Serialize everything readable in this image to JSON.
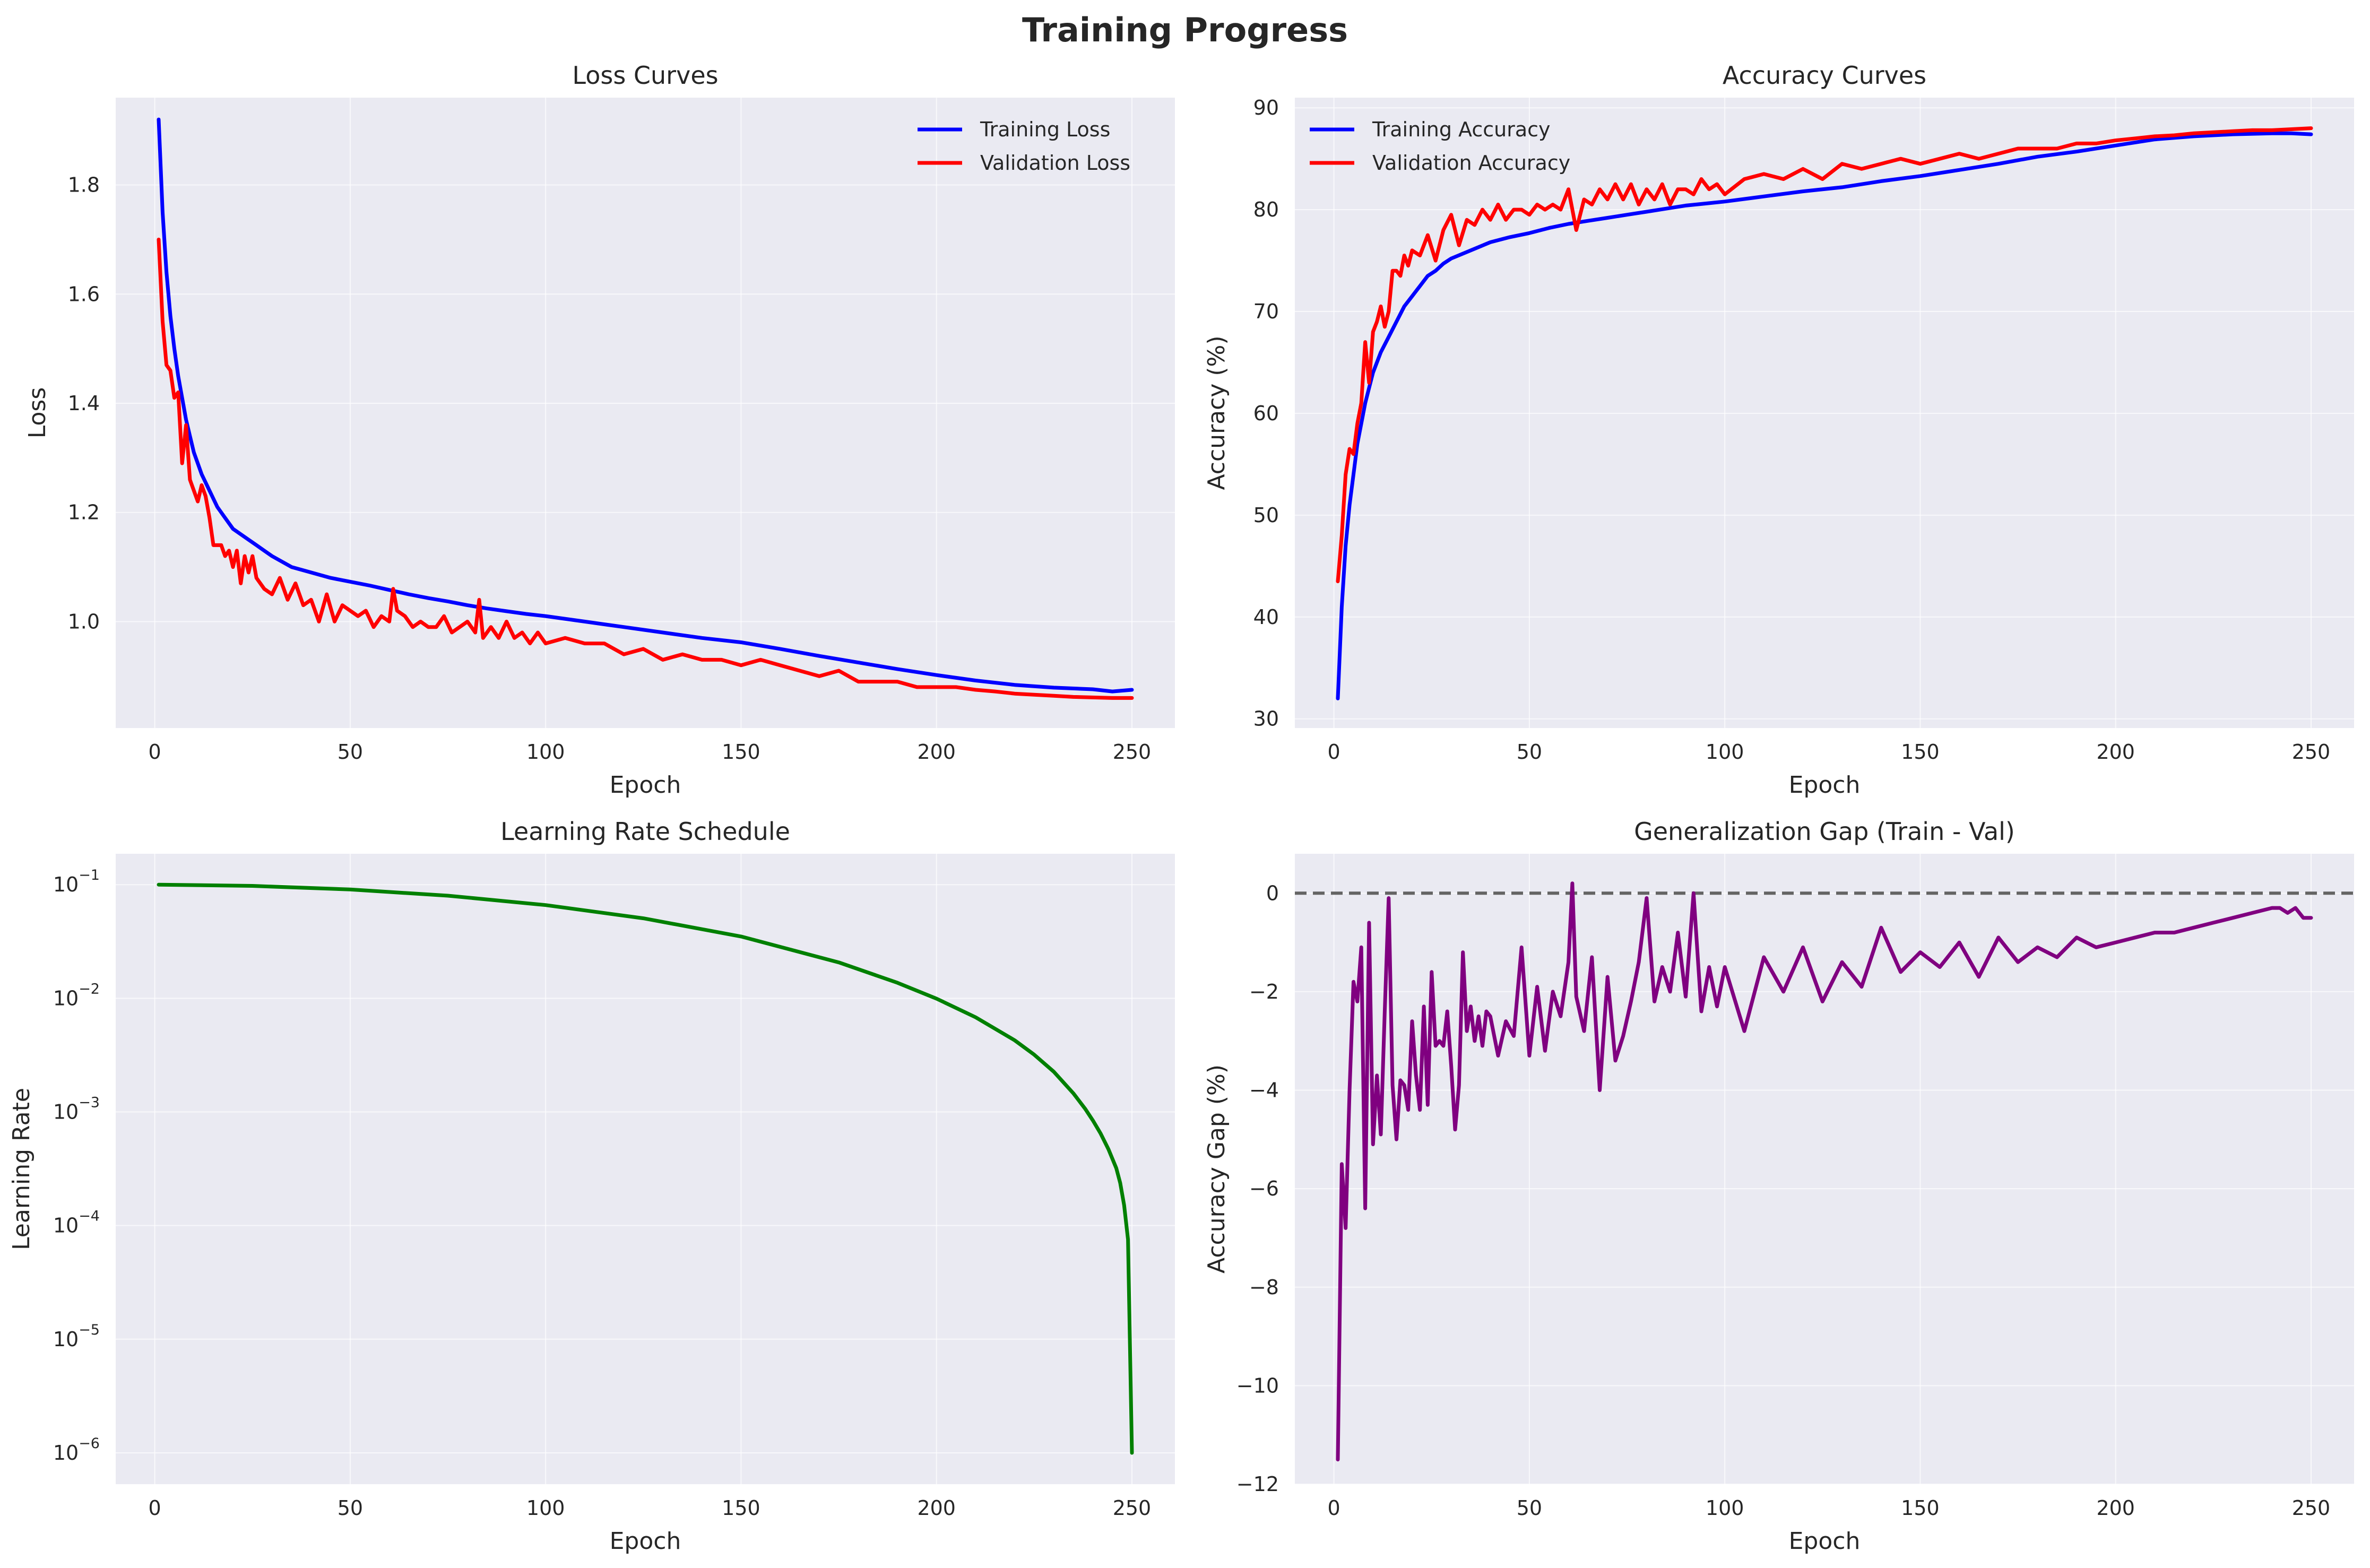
{
  "figure": {
    "title": "Training Progress"
  },
  "chart_data": [
    {
      "id": "loss",
      "type": "line",
      "title": "Loss Curves",
      "xlabel": "Epoch",
      "ylabel": "Loss",
      "xlim": [
        -10,
        261
      ],
      "ylim": [
        0.805,
        1.96
      ],
      "xticks": [
        0,
        50,
        100,
        150,
        200,
        250
      ],
      "yticks": [
        1.0,
        1.2,
        1.4,
        1.6,
        1.8
      ],
      "ytick_labels": [
        "1.0",
        "1.2",
        "1.4",
        "1.6",
        "1.8"
      ],
      "legend": "top-right",
      "grid": true,
      "series": [
        {
          "name": "Training Loss",
          "color": "#0000ff",
          "x": [
            1,
            2,
            3,
            4,
            5,
            6,
            7,
            8,
            9,
            10,
            12,
            14,
            16,
            18,
            20,
            22,
            24,
            26,
            28,
            30,
            35,
            40,
            45,
            50,
            55,
            60,
            65,
            70,
            75,
            80,
            85,
            90,
            95,
            100,
            110,
            120,
            130,
            140,
            150,
            160,
            170,
            180,
            190,
            200,
            210,
            220,
            230,
            240,
            245,
            250
          ],
          "y": [
            1.92,
            1.75,
            1.64,
            1.56,
            1.5,
            1.45,
            1.41,
            1.37,
            1.34,
            1.31,
            1.27,
            1.24,
            1.21,
            1.19,
            1.17,
            1.16,
            1.15,
            1.14,
            1.13,
            1.12,
            1.1,
            1.09,
            1.08,
            1.073,
            1.066,
            1.058,
            1.05,
            1.043,
            1.037,
            1.03,
            1.024,
            1.019,
            1.014,
            1.01,
            1.0,
            0.99,
            0.98,
            0.97,
            0.962,
            0.95,
            0.937,
            0.925,
            0.913,
            0.902,
            0.892,
            0.884,
            0.879,
            0.876,
            0.872,
            0.875
          ]
        },
        {
          "name": "Validation Loss",
          "color": "#ff0000",
          "x": [
            1,
            2,
            3,
            4,
            5,
            6,
            7,
            8,
            9,
            10,
            11,
            12,
            13,
            14,
            15,
            16,
            17,
            18,
            19,
            20,
            21,
            22,
            23,
            24,
            25,
            26,
            28,
            30,
            32,
            34,
            36,
            38,
            40,
            42,
            44,
            46,
            48,
            50,
            52,
            54,
            56,
            58,
            60,
            61,
            62,
            64,
            66,
            68,
            70,
            72,
            74,
            76,
            78,
            80,
            82,
            83,
            84,
            86,
            88,
            90,
            92,
            94,
            96,
            98,
            100,
            105,
            110,
            115,
            120,
            125,
            130,
            135,
            140,
            145,
            150,
            155,
            160,
            165,
            170,
            175,
            180,
            185,
            190,
            195,
            200,
            205,
            210,
            215,
            220,
            225,
            230,
            235,
            240,
            245,
            250
          ],
          "y": [
            1.7,
            1.55,
            1.47,
            1.46,
            1.41,
            1.42,
            1.29,
            1.36,
            1.26,
            1.24,
            1.22,
            1.25,
            1.23,
            1.19,
            1.14,
            1.14,
            1.14,
            1.12,
            1.13,
            1.1,
            1.13,
            1.07,
            1.12,
            1.09,
            1.12,
            1.08,
            1.06,
            1.05,
            1.08,
            1.04,
            1.07,
            1.03,
            1.04,
            1.0,
            1.05,
            1.0,
            1.03,
            1.02,
            1.01,
            1.02,
            0.99,
            1.01,
            1.0,
            1.06,
            1.02,
            1.01,
            0.99,
            1.0,
            0.99,
            0.99,
            1.01,
            0.98,
            0.99,
            1.0,
            0.98,
            1.04,
            0.97,
            0.99,
            0.97,
            1.0,
            0.97,
            0.98,
            0.96,
            0.98,
            0.96,
            0.97,
            0.96,
            0.96,
            0.94,
            0.95,
            0.93,
            0.94,
            0.93,
            0.93,
            0.92,
            0.93,
            0.92,
            0.91,
            0.9,
            0.91,
            0.89,
            0.89,
            0.89,
            0.88,
            0.88,
            0.88,
            0.875,
            0.872,
            0.868,
            0.866,
            0.864,
            0.862,
            0.861,
            0.86,
            0.86
          ]
        }
      ]
    },
    {
      "id": "accuracy",
      "type": "line",
      "title": "Accuracy Curves",
      "xlabel": "Epoch",
      "ylabel": "Accuracy (%)",
      "xlim": [
        -10,
        261
      ],
      "ylim": [
        29.1,
        91.0
      ],
      "xticks": [
        0,
        50,
        100,
        150,
        200,
        250
      ],
      "yticks": [
        30,
        40,
        50,
        60,
        70,
        80,
        90
      ],
      "ytick_labels": [
        "30",
        "40",
        "50",
        "60",
        "70",
        "80",
        "90"
      ],
      "legend": "top-left",
      "grid": true,
      "series": [
        {
          "name": "Training Accuracy",
          "color": "#0000ff",
          "x": [
            1,
            2,
            3,
            4,
            5,
            6,
            7,
            8,
            9,
            10,
            12,
            14,
            16,
            18,
            20,
            22,
            24,
            26,
            28,
            30,
            35,
            40,
            45,
            50,
            55,
            60,
            65,
            70,
            75,
            80,
            85,
            90,
            95,
            100,
            110,
            120,
            130,
            140,
            150,
            160,
            170,
            180,
            190,
            200,
            210,
            220,
            230,
            240,
            245,
            250
          ],
          "y": [
            32,
            41,
            47,
            51,
            54,
            57,
            59,
            61,
            62.5,
            64,
            66,
            67.5,
            69,
            70.5,
            71.5,
            72.5,
            73.5,
            74,
            74.7,
            75.2,
            76,
            76.8,
            77.3,
            77.7,
            78.2,
            78.6,
            78.9,
            79.2,
            79.5,
            79.8,
            80.1,
            80.4,
            80.6,
            80.8,
            81.3,
            81.8,
            82.2,
            82.8,
            83.3,
            83.9,
            84.5,
            85.2,
            85.7,
            86.3,
            86.9,
            87.2,
            87.4,
            87.5,
            87.5,
            87.4
          ]
        },
        {
          "name": "Validation Accuracy",
          "color": "#ff0000",
          "x": [
            1,
            2,
            3,
            4,
            5,
            6,
            7,
            8,
            9,
            10,
            11,
            12,
            13,
            14,
            15,
            16,
            17,
            18,
            19,
            20,
            22,
            24,
            26,
            28,
            30,
            32,
            34,
            36,
            38,
            40,
            42,
            44,
            46,
            48,
            50,
            52,
            54,
            56,
            58,
            60,
            62,
            64,
            66,
            68,
            70,
            72,
            74,
            76,
            78,
            80,
            82,
            84,
            86,
            88,
            90,
            92,
            94,
            96,
            98,
            100,
            105,
            110,
            115,
            120,
            125,
            130,
            135,
            140,
            145,
            150,
            155,
            160,
            165,
            170,
            175,
            180,
            185,
            190,
            195,
            200,
            205,
            210,
            215,
            220,
            225,
            230,
            235,
            240,
            245,
            250
          ],
          "y": [
            43.5,
            48,
            54,
            56.5,
            56,
            59,
            61,
            67,
            63,
            68,
            69,
            70.5,
            68.5,
            70,
            74,
            74,
            73.5,
            75.5,
            74.5,
            76,
            75.5,
            77.5,
            75,
            78,
            79.5,
            76.5,
            79,
            78.5,
            80,
            79,
            80.5,
            79,
            80,
            80,
            79.5,
            80.5,
            80,
            80.5,
            80,
            82,
            78,
            81,
            80.5,
            82,
            81,
            82.5,
            81,
            82.5,
            80.5,
            82,
            81,
            82.5,
            80.5,
            82,
            82,
            81.5,
            83,
            82,
            82.5,
            81.5,
            83,
            83.5,
            83,
            84,
            83,
            84.5,
            84,
            84.5,
            85,
            84.5,
            85,
            85.5,
            85,
            85.5,
            86,
            86,
            86,
            86.5,
            86.5,
            86.8,
            87,
            87.2,
            87.3,
            87.5,
            87.6,
            87.7,
            87.8,
            87.8,
            87.9,
            88
          ]
        }
      ]
    },
    {
      "id": "lr",
      "type": "line",
      "title": "Learning Rate Schedule",
      "xlabel": "Epoch",
      "ylabel": "Learning Rate",
      "yscale": "log",
      "xlim": [
        -10,
        261
      ],
      "ylim": [
        5.3e-07,
        0.187
      ],
      "xticks": [
        0,
        50,
        100,
        150,
        200,
        250
      ],
      "yticks": [
        1e-06,
        1e-05,
        0.0001,
        0.001,
        0.01,
        0.1
      ],
      "ytick_base": "10",
      "ytick_exponents": [
        "−6",
        "−5",
        "−4",
        "−3",
        "−2",
        "−1"
      ],
      "legend": "none",
      "grid": true,
      "series": [
        {
          "color": "#008000",
          "x": [
            1,
            25,
            50,
            75,
            100,
            125,
            150,
            175,
            190,
            200,
            210,
            220,
            225,
            230,
            235,
            238,
            240,
            242,
            244,
            246,
            247,
            248,
            249,
            250
          ],
          "y": [
            0.1,
            0.0976,
            0.0907,
            0.08,
            0.0661,
            0.0506,
            0.035,
            0.0207,
            0.0137,
            0.00993,
            0.00681,
            0.00427,
            0.00319,
            0.00226,
            0.00146,
            0.00107,
            0.000843,
            0.000644,
            0.000469,
            0.00032,
            0.000237,
            0.000151,
            7.55e-05,
            1e-06
          ]
        }
      ]
    },
    {
      "id": "gap",
      "type": "line",
      "title": "Generalization Gap (Train - Val)",
      "xlabel": "Epoch",
      "ylabel": "Accuracy Gap (%)",
      "xlim": [
        -10,
        261
      ],
      "ylim": [
        -12.0,
        0.8
      ],
      "xticks": [
        0,
        50,
        100,
        150,
        200,
        250
      ],
      "yticks": [
        -12,
        -10,
        -8,
        -6,
        -4,
        -2,
        0
      ],
      "ytick_labels": [
        "−12",
        "−10",
        "−8",
        "−6",
        "−4",
        "−2",
        "0"
      ],
      "legend": "none",
      "grid": true,
      "reference_line": {
        "y": 0,
        "color": "#646464",
        "style": "dashed"
      },
      "series": [
        {
          "color": "#800080",
          "x": [
            1,
            2,
            3,
            4,
            5,
            6,
            7,
            8,
            9,
            10,
            11,
            12,
            13,
            14,
            15,
            16,
            17,
            18,
            19,
            20,
            21,
            22,
            23,
            24,
            25,
            26,
            27,
            28,
            29,
            30,
            31,
            32,
            33,
            34,
            35,
            36,
            37,
            38,
            39,
            40,
            42,
            44,
            46,
            48,
            50,
            52,
            54,
            56,
            58,
            60,
            61,
            62,
            64,
            66,
            68,
            70,
            72,
            74,
            76,
            78,
            80,
            82,
            84,
            86,
            88,
            90,
            92,
            94,
            96,
            98,
            100,
            105,
            110,
            115,
            120,
            125,
            130,
            135,
            140,
            145,
            150,
            155,
            160,
            165,
            170,
            175,
            180,
            185,
            190,
            195,
            200,
            205,
            210,
            215,
            220,
            225,
            230,
            235,
            240,
            242,
            244,
            246,
            248,
            250
          ],
          "y": [
            -11.5,
            -5.5,
            -6.8,
            -4.0,
            -1.8,
            -2.2,
            -1.1,
            -6.4,
            -0.6,
            -5.1,
            -3.7,
            -4.9,
            -2.4,
            -0.1,
            -3.9,
            -5.0,
            -3.8,
            -3.9,
            -4.4,
            -2.6,
            -3.7,
            -4.4,
            -2.3,
            -4.3,
            -1.6,
            -3.1,
            -3.0,
            -3.1,
            -2.4,
            -3.5,
            -4.8,
            -3.9,
            -1.2,
            -2.8,
            -2.3,
            -3.0,
            -2.5,
            -3.1,
            -2.4,
            -2.5,
            -3.3,
            -2.6,
            -2.9,
            -1.1,
            -3.3,
            -1.9,
            -3.2,
            -2.0,
            -2.5,
            -1.4,
            0.2,
            -2.1,
            -2.8,
            -1.3,
            -4.0,
            -1.7,
            -3.4,
            -2.9,
            -2.2,
            -1.4,
            -0.1,
            -2.2,
            -1.5,
            -2.0,
            -0.8,
            -2.1,
            0.0,
            -2.4,
            -1.5,
            -2.3,
            -1.5,
            -2.8,
            -1.3,
            -2.0,
            -1.1,
            -2.2,
            -1.4,
            -1.9,
            -0.7,
            -1.6,
            -1.2,
            -1.5,
            -1.0,
            -1.7,
            -0.9,
            -1.4,
            -1.1,
            -1.3,
            -0.9,
            -1.1,
            -1.0,
            -0.9,
            -0.8,
            -0.8,
            -0.7,
            -0.6,
            -0.5,
            -0.4,
            -0.3,
            -0.3,
            -0.4,
            -0.3,
            -0.5,
            -0.5
          ]
        }
      ]
    }
  ]
}
